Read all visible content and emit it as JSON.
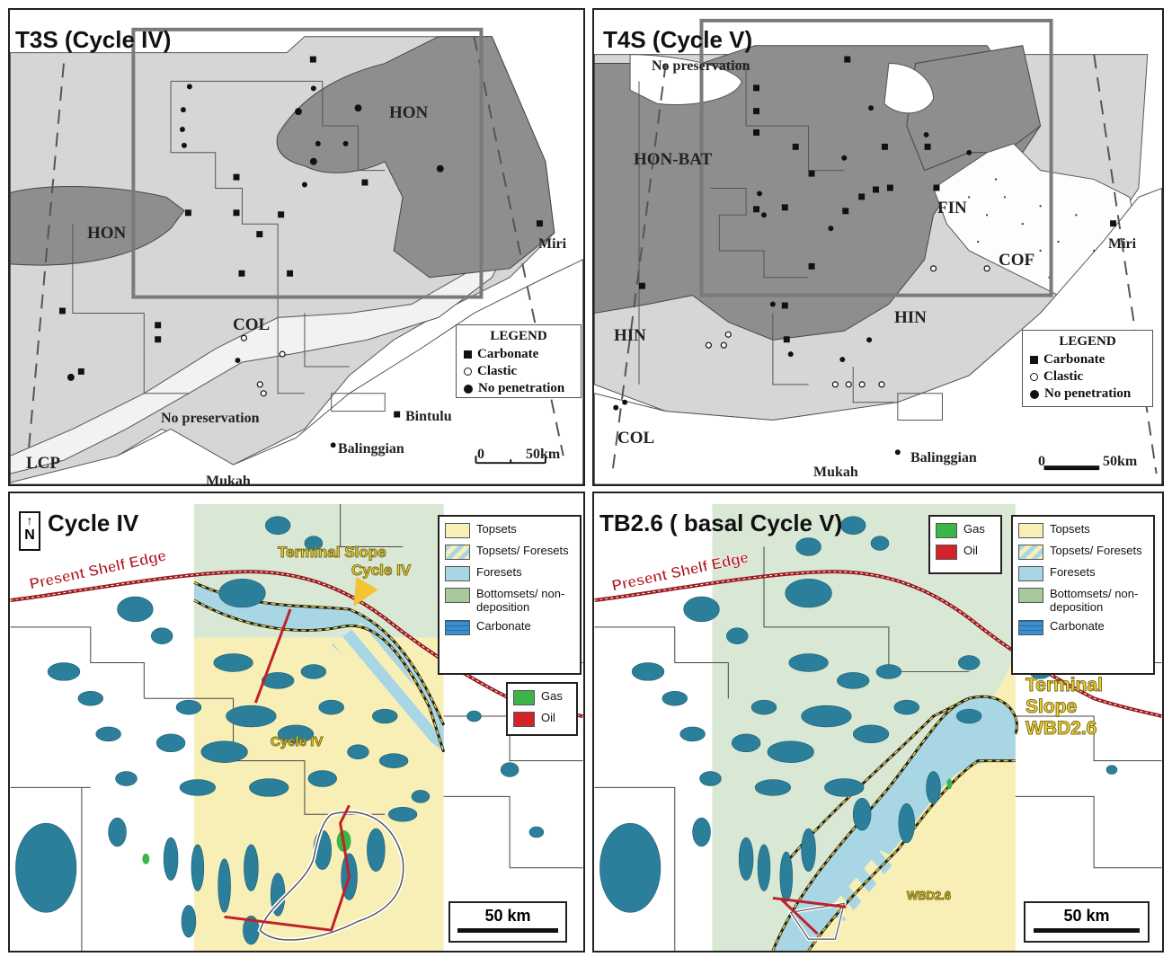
{
  "panels": {
    "top_left": {
      "title": "T3S (Cycle IV)",
      "labels": {
        "hon_ne": "HON",
        "hon_w": "HON",
        "col": "COL",
        "lcp": "LCP",
        "no_preservation": "No preservation",
        "miri": "Miri",
        "bintulu": "Bintulu",
        "balinggian": "Balinggian",
        "mukah": "Mukah"
      },
      "legend": {
        "title": "LEGEND",
        "carbonate": "Carbonate",
        "clastic": "Clastic",
        "no_penetration": "No penetration"
      },
      "scale": {
        "zero": "0",
        "km": "50km"
      }
    },
    "top_right": {
      "title": "T4S (Cycle V)",
      "labels": {
        "no_preservation": "No preservation",
        "hon_bat": "HON-BAT",
        "fin": "FIN",
        "cof": "COF",
        "hin_w": "HIN",
        "hin_c": "HIN",
        "col": "COL",
        "miri": "Miri",
        "balinggian": "Balinggian",
        "mukah": "Mukah"
      },
      "legend": {
        "title": "LEGEND",
        "carbonate": "Carbonate",
        "clastic": "Clastic",
        "no_penetration": "No penetration"
      },
      "scale": {
        "zero": "0",
        "km": "50km"
      }
    },
    "bottom_left": {
      "title": "Cycle IV",
      "north": "N",
      "present_shelf_edge": "Present Shelf Edge",
      "terminal_slope": "Terminal Slope",
      "terminal_slope_cycle": "Cycle IV",
      "cycle_iv_label": "Cycle IV",
      "facies_legend": [
        "Topsets",
        "Topsets/ Foresets",
        "Foresets",
        "Bottomsets/ non-deposition",
        "Carbonate"
      ],
      "fluid_legend": [
        "Gas",
        "Oil"
      ],
      "scale": "50 km"
    },
    "bottom_right": {
      "title": "TB2.6 ( basal Cycle V)",
      "present_shelf_edge": "Present Shelf Edge",
      "terminal_slope_lines": [
        "Terminal",
        "Slope",
        "WBD2.6"
      ],
      "wbd_label": "WBD2.6",
      "facies_legend": [
        "Topsets",
        "Topsets/ Foresets",
        "Foresets",
        "Bottomsets/ non-deposition",
        "Carbonate"
      ],
      "fluid_legend": [
        "Gas",
        "Oil"
      ],
      "scale": "50 km"
    }
  },
  "colors": {
    "dark_gray": "#8e8e8e",
    "light_gray": "#d6d6d6",
    "topsets": "#f8efb6",
    "foresets": "#a9d6e5",
    "bottomsets": "#d9e8d4",
    "carbonate": "#3a8fd0",
    "reef": "#2b7f9a",
    "gas": "#3bb548",
    "oil": "#d2232a",
    "shelf_edge": "#9a1b1f"
  }
}
